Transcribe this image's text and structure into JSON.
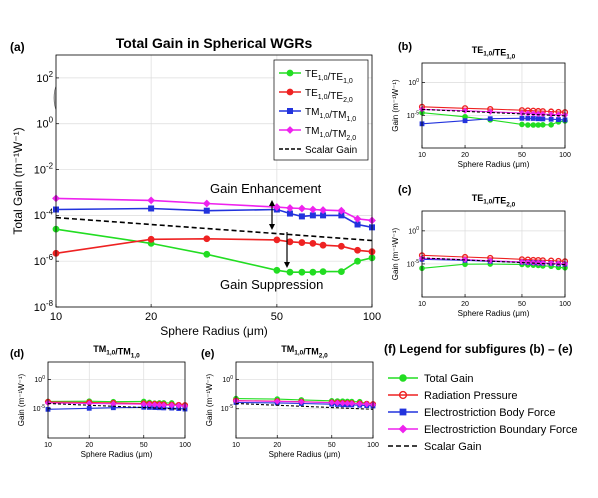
{
  "figure_legend": {
    "title": "(f) Legend for subfigures (b) – (e)",
    "items": [
      {
        "label": "Total Gain",
        "color": "#22dd22",
        "marker": "circle",
        "dash": false
      },
      {
        "label": "Radiation Pressure",
        "color": "#ee2222",
        "marker": "open-circle",
        "dash": false
      },
      {
        "label": "Electrostriction Body Force",
        "color": "#2233dd",
        "marker": "square",
        "dash": false
      },
      {
        "label": "Electrostriction Boundary Force",
        "color": "#ee22ee",
        "marker": "diamond",
        "dash": false
      },
      {
        "label": "Scalar Gain",
        "color": "#000000",
        "marker": "none",
        "dash": true
      }
    ]
  },
  "chart_data": [
    {
      "id": "a",
      "panel_label": "(a)",
      "type": "line",
      "title": "Total Gain in Spherical WGRs",
      "xlabel": "Sphere Radius (μm)",
      "ylabel": "Total Gain (m⁻¹W⁻¹)",
      "xscale": "log",
      "yscale": "log",
      "xlim": [
        10,
        100
      ],
      "ylim": [
        1e-08,
        1000.0
      ],
      "xticks": [
        10,
        20,
        50,
        100
      ],
      "xtick_labels": [
        "10",
        "20",
        "50",
        "100"
      ],
      "yticks": [
        1e-08,
        1e-06,
        0.0001,
        0.01,
        1,
        100
      ],
      "ytick_labels": [
        [
          "10",
          "-8"
        ],
        [
          "10",
          "-6"
        ],
        [
          "10",
          "-4"
        ],
        [
          "10",
          "-2"
        ],
        [
          "10",
          "0"
        ],
        [
          "10",
          "2"
        ]
      ],
      "grid": true,
      "legend_position": "top-right",
      "series": [
        {
          "name": "TE1,0/TE1,0",
          "color": "#22dd22",
          "marker": "circle",
          "x": [
            10,
            20,
            30,
            50,
            55,
            60,
            65,
            70,
            80,
            90,
            100
          ],
          "y": [
            2.5e-05,
            6e-06,
            2e-06,
            4e-07,
            3.3e-07,
            3.3e-07,
            3.3e-07,
            3.5e-07,
            3.5e-07,
            1e-06,
            1.4e-06
          ]
        },
        {
          "name": "TE1,0/TE2,0",
          "color": "#ee2222",
          "marker": "circle",
          "x": [
            10,
            20,
            30,
            50,
            55,
            60,
            65,
            70,
            80,
            90,
            100
          ],
          "y": [
            2.2e-06,
            9e-06,
            9.5e-06,
            8.5e-06,
            7e-06,
            6.5e-06,
            6e-06,
            5e-06,
            4.5e-06,
            3e-06,
            2.6e-06
          ]
        },
        {
          "name": "TM1,0/TM1,0",
          "color": "#2233dd",
          "marker": "square",
          "x": [
            10,
            20,
            30,
            50,
            55,
            60,
            65,
            70,
            80,
            90,
            100
          ],
          "y": [
            0.00018,
            0.0002,
            0.00016,
            0.00018,
            0.00012,
            9e-05,
            0.0001,
            0.0001,
            0.0001,
            4e-05,
            3e-05
          ]
        },
        {
          "name": "TM1,0/TM2,0",
          "color": "#ee22ee",
          "marker": "diamond",
          "x": [
            10,
            20,
            30,
            50,
            55,
            60,
            65,
            70,
            80,
            90,
            100
          ],
          "y": [
            0.00055,
            0.00045,
            0.00033,
            0.00023,
            0.00021,
            0.0002,
            0.00018,
            0.00017,
            0.00016,
            7e-05,
            6e-05
          ]
        },
        {
          "name": "Scalar Gain",
          "color": "#000000",
          "marker": "none",
          "dash": true,
          "x": [
            10,
            100
          ],
          "y": [
            8e-05,
            8e-06
          ]
        }
      ],
      "annotations": [
        "Gain Enhancement",
        "Gain Suppression"
      ]
    },
    {
      "id": "b",
      "panel_label": "(b)",
      "type": "line",
      "title": "TE1,0/TE1,0",
      "xlabel": "Sphere Radius (μm)",
      "ylabel": "Gain (m⁻¹W⁻¹)",
      "xscale": "log",
      "yscale": "log",
      "xlim": [
        10,
        100
      ],
      "ylim": [
        1e-10,
        1000.0
      ],
      "xticks": [
        10,
        20,
        50,
        100
      ],
      "xtick_labels": [
        "10",
        "20",
        "50",
        "100"
      ],
      "yticks": [
        1e-05,
        1
      ],
      "ytick_labels": [
        [
          "10",
          "-5"
        ],
        [
          "10",
          "0"
        ]
      ],
      "grid": true,
      "series": [
        {
          "name": "Total Gain",
          "x": [
            10,
            20,
            30,
            50,
            55,
            60,
            65,
            70,
            80,
            90,
            100
          ],
          "y": [
            2.5e-05,
            6e-06,
            2e-06,
            4e-07,
            3.3e-07,
            3.3e-07,
            3.3e-07,
            3.5e-07,
            3.5e-07,
            1e-06,
            1.4e-06
          ]
        },
        {
          "name": "Radiation Pressure",
          "x": [
            10,
            20,
            30,
            50,
            55,
            60,
            65,
            70,
            80,
            90,
            100
          ],
          "y": [
            0.0002,
            0.00012,
            9e-05,
            6e-05,
            5.5e-05,
            5e-05,
            4.5e-05,
            4.2e-05,
            3.8e-05,
            3.3e-05,
            3e-05
          ]
        },
        {
          "name": "Electrostriction Body Force",
          "x": [
            10,
            20,
            30,
            50,
            55,
            60,
            65,
            70,
            80,
            90,
            100
          ],
          "y": [
            5e-07,
            1.5e-06,
            3e-06,
            3.5e-06,
            3.5e-06,
            3.3e-06,
            3e-06,
            2.8e-06,
            2.5e-06,
            2.2e-06,
            2e-06
          ]
        },
        {
          "name": "Electrostriction Boundary Force",
          "x": [
            10,
            20,
            30,
            50,
            55,
            60,
            65,
            70,
            80,
            90,
            100
          ],
          "y": [
            8e-05,
            5e-05,
            3.5e-05,
            2.2e-05,
            2e-05,
            1.8e-05,
            1.6e-05,
            1.5e-05,
            1.4e-05,
            1.2e-05,
            1.1e-05
          ]
        },
        {
          "name": "Scalar Gain",
          "dash": true,
          "x": [
            10,
            100
          ],
          "y": [
            8e-05,
            8e-06
          ]
        }
      ]
    },
    {
      "id": "c",
      "panel_label": "(c)",
      "type": "line",
      "title": "TE1,0/TE2,0",
      "xlabel": "Sphere Radius (μm)",
      "ylabel": "Gain (m⁻¹W⁻¹)",
      "xscale": "log",
      "yscale": "log",
      "xlim": [
        10,
        100
      ],
      "ylim": [
        1e-10,
        1000.0
      ],
      "xticks": [
        10,
        20,
        50,
        100
      ],
      "xtick_labels": [
        "10",
        "20",
        "50",
        "100"
      ],
      "yticks": [
        1e-05,
        1
      ],
      "ytick_labels": [
        [
          "10",
          "-5"
        ],
        [
          "10",
          "0"
        ]
      ],
      "grid": true,
      "series": [
        {
          "name": "Total Gain",
          "x": [
            10,
            20,
            30,
            50,
            55,
            60,
            65,
            70,
            80,
            90,
            100
          ],
          "y": [
            2.2e-06,
            9e-06,
            9.5e-06,
            8.5e-06,
            7e-06,
            6.5e-06,
            6e-06,
            5e-06,
            4.5e-06,
            3e-06,
            2.6e-06
          ]
        },
        {
          "name": "Radiation Pressure",
          "x": [
            10,
            20,
            30,
            50,
            55,
            60,
            65,
            70,
            80,
            90,
            100
          ],
          "y": [
            0.0002,
            0.00011,
            8e-05,
            5e-05,
            4.5e-05,
            4e-05,
            3.8e-05,
            3.5e-05,
            3.2e-05,
            2.8e-05,
            2.5e-05
          ]
        },
        {
          "name": "Electrostriction Body Force",
          "x": [
            10,
            20,
            30,
            50,
            55,
            60,
            65,
            70,
            80,
            90,
            100
          ],
          "y": [
            5e-05,
            3.5e-05,
            2.5e-05,
            1.8e-05,
            1.6e-05,
            1.5e-05,
            1.4e-05,
            1.3e-05,
            1.2e-05,
            1e-05,
            9e-06
          ]
        },
        {
          "name": "Electrostriction Boundary Force",
          "x": [
            10,
            20,
            30,
            50,
            55,
            60,
            65,
            70,
            80,
            90,
            100
          ],
          "y": [
            7e-05,
            4.5e-05,
            3e-05,
            2e-05,
            1.8e-05,
            1.6e-05,
            1.5e-05,
            1.4e-05,
            1.3e-05,
            1.1e-05,
            1e-05
          ]
        },
        {
          "name": "Scalar Gain",
          "dash": true,
          "x": [
            10,
            100
          ],
          "y": [
            8e-05,
            8e-06
          ]
        }
      ]
    },
    {
      "id": "d",
      "panel_label": "(d)",
      "type": "line",
      "title": "TM1,0/TM1,0",
      "xlabel": "Sphere Radius (μm)",
      "ylabel": "Gain (m⁻¹W⁻¹)",
      "xscale": "log",
      "yscale": "log",
      "xlim": [
        10,
        100
      ],
      "ylim": [
        1e-10,
        1000.0
      ],
      "xticks": [
        10,
        20,
        50,
        100
      ],
      "xtick_labels": [
        "10",
        "20",
        "50",
        "100"
      ],
      "yticks": [
        1e-05,
        1
      ],
      "ytick_labels": [
        [
          "10",
          "-5"
        ],
        [
          "10",
          "0"
        ]
      ],
      "grid": true,
      "series": [
        {
          "name": "Total Gain",
          "x": [
            10,
            20,
            30,
            50,
            55,
            60,
            65,
            70,
            80,
            90,
            100
          ],
          "y": [
            0.00018,
            0.0002,
            0.00016,
            0.00018,
            0.00012,
            9e-05,
            0.0001,
            0.0001,
            0.0001,
            4e-05,
            3e-05
          ]
        },
        {
          "name": "Radiation Pressure",
          "x": [
            10,
            20,
            30,
            50,
            55,
            60,
            65,
            70,
            80,
            90,
            100
          ],
          "y": [
            0.00015,
            0.00012,
            0.0001,
            8e-05,
            7e-05,
            6.5e-05,
            6e-05,
            5.5e-05,
            5e-05,
            4.5e-05,
            4e-05
          ]
        },
        {
          "name": "Electrostriction Body Force",
          "x": [
            10,
            20,
            30,
            50,
            55,
            60,
            65,
            70,
            80,
            90,
            100
          ],
          "y": [
            8e-06,
            1.2e-05,
            1.5e-05,
            1.8e-05,
            1.7e-05,
            1.6e-05,
            1.5e-05,
            1.4e-05,
            1.3e-05,
            1.1e-05,
            9e-06
          ]
        },
        {
          "name": "Electrostriction Boundary Force",
          "x": [
            10,
            20,
            30,
            50,
            55,
            60,
            65,
            70,
            80,
            90,
            100
          ],
          "y": [
            0.0001,
            8e-05,
            7e-05,
            6e-05,
            5.5e-05,
            5e-05,
            4.5e-05,
            4.2e-05,
            4e-05,
            3.5e-05,
            3e-05
          ]
        },
        {
          "name": "Scalar Gain",
          "dash": true,
          "x": [
            10,
            100
          ],
          "y": [
            8e-05,
            8e-06
          ]
        }
      ]
    },
    {
      "id": "e",
      "panel_label": "(e)",
      "type": "line",
      "title": "TM1,0/TM2,0",
      "xlabel": "Sphere Radius (μm)",
      "ylabel": "Gain (m⁻¹W⁻¹)",
      "xscale": "log",
      "yscale": "log",
      "xlim": [
        10,
        100
      ],
      "ylim": [
        1e-10,
        1000.0
      ],
      "xticks": [
        10,
        20,
        50,
        100
      ],
      "xtick_labels": [
        "10",
        "20",
        "50",
        "100"
      ],
      "yticks": [
        1e-05,
        1
      ],
      "ytick_labels": [
        [
          "10",
          "-5"
        ],
        [
          "10",
          "0"
        ]
      ],
      "grid": true,
      "series": [
        {
          "name": "Total Gain",
          "x": [
            10,
            20,
            30,
            50,
            55,
            60,
            65,
            70,
            80,
            90,
            100
          ],
          "y": [
            0.00055,
            0.00045,
            0.00033,
            0.00023,
            0.00021,
            0.0002,
            0.00018,
            0.00017,
            0.00016,
            7e-05,
            6e-05
          ]
        },
        {
          "name": "Radiation Pressure",
          "x": [
            10,
            20,
            30,
            50,
            55,
            60,
            65,
            70,
            80,
            90,
            100
          ],
          "y": [
            0.00025,
            0.0002,
            0.00016,
            0.00012,
            0.00011,
            0.0001,
            9.5e-05,
            9e-05,
            8e-05,
            7e-05,
            6e-05
          ]
        },
        {
          "name": "Electrostriction Body Force",
          "x": [
            10,
            20,
            30,
            50,
            55,
            60,
            65,
            70,
            80,
            90,
            100
          ],
          "y": [
            0.00012,
            0.0001,
            8e-05,
            6e-05,
            5.5e-05,
            5e-05,
            4.8e-05,
            4.5e-05,
            4e-05,
            3.5e-05,
            3e-05
          ]
        },
        {
          "name": "Electrostriction Boundary Force",
          "x": [
            10,
            20,
            30,
            50,
            55,
            60,
            65,
            70,
            80,
            90,
            100
          ],
          "y": [
            0.00022,
            0.00018,
            0.00015,
            0.00011,
            0.0001,
            9e-05,
            8.5e-05,
            8e-05,
            7e-05,
            6e-05,
            5e-05
          ]
        },
        {
          "name": "Scalar Gain",
          "dash": true,
          "x": [
            10,
            100
          ],
          "y": [
            8e-05,
            8e-06
          ]
        }
      ]
    }
  ]
}
